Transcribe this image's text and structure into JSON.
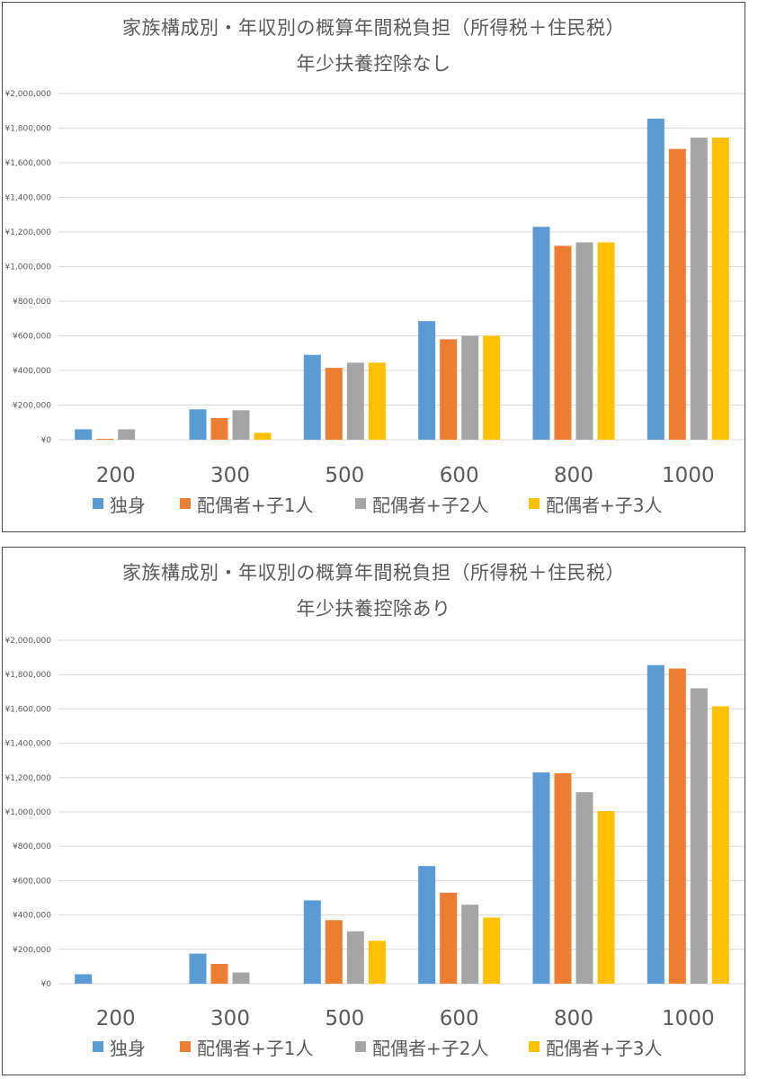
{
  "colors": {
    "grid": "#d9d9d9",
    "axis_text": "#595959",
    "title_text": "#595959",
    "border": "#4a4a4a"
  },
  "chart_data": [
    {
      "type": "bar",
      "title": "家族構成別・年収別の概算年間税負担（所得税＋住民税）",
      "subtitle": "年少扶養控除なし",
      "xlabel": "",
      "ylabel": "",
      "ylim": [
        0,
        2000000
      ],
      "yticks": [
        "¥0",
        "¥200,000",
        "¥400,000",
        "¥600,000",
        "¥800,000",
        "¥1,000,000",
        "¥1,200,000",
        "¥1,400,000",
        "¥1,600,000",
        "¥1,800,000",
        "¥2,000,000"
      ],
      "grid": true,
      "legend_position": "bottom",
      "categories": [
        "200",
        "300",
        "500",
        "600",
        "800",
        "1000"
      ],
      "series": [
        {
          "name": "独身",
          "color": "#5b9bd5",
          "values": [
            60000,
            175000,
            490000,
            685000,
            1230000,
            1855000
          ]
        },
        {
          "name": "配偶者+子1人",
          "color": "#ed7d31",
          "values": [
            5000,
            125000,
            415000,
            580000,
            1120000,
            1680000
          ]
        },
        {
          "name": "配偶者+子2人",
          "color": "#a5a5a5",
          "values": [
            60000,
            170000,
            445000,
            600000,
            1140000,
            1745000
          ]
        },
        {
          "name": "配偶者+子3人",
          "color": "#ffc000",
          "values": [
            0,
            40000,
            445000,
            600000,
            1140000,
            1745000
          ]
        }
      ]
    },
    {
      "type": "bar",
      "title": "家族構成別・年収別の概算年間税負担（所得税＋住民税）",
      "subtitle": "年少扶養控除あり",
      "xlabel": "",
      "ylabel": "",
      "ylim": [
        0,
        2000000
      ],
      "yticks": [
        "¥0",
        "¥200,000",
        "¥400,000",
        "¥600,000",
        "¥800,000",
        "¥1,000,000",
        "¥1,200,000",
        "¥1,400,000",
        "¥1,600,000",
        "¥1,800,000",
        "¥2,000,000"
      ],
      "grid": true,
      "legend_position": "bottom",
      "categories": [
        "200",
        "300",
        "500",
        "600",
        "800",
        "1000"
      ],
      "series": [
        {
          "name": "独身",
          "color": "#5b9bd5",
          "values": [
            55000,
            175000,
            485000,
            685000,
            1230000,
            1855000
          ]
        },
        {
          "name": "配偶者+子1人",
          "color": "#ed7d31",
          "values": [
            0,
            115000,
            370000,
            530000,
            1225000,
            1835000
          ]
        },
        {
          "name": "配偶者+子2人",
          "color": "#a5a5a5",
          "values": [
            0,
            65000,
            305000,
            460000,
            1115000,
            1720000
          ]
        },
        {
          "name": "配偶者+子3人",
          "color": "#ffc000",
          "values": [
            0,
            0,
            250000,
            385000,
            1005000,
            1615000
          ]
        }
      ]
    }
  ]
}
